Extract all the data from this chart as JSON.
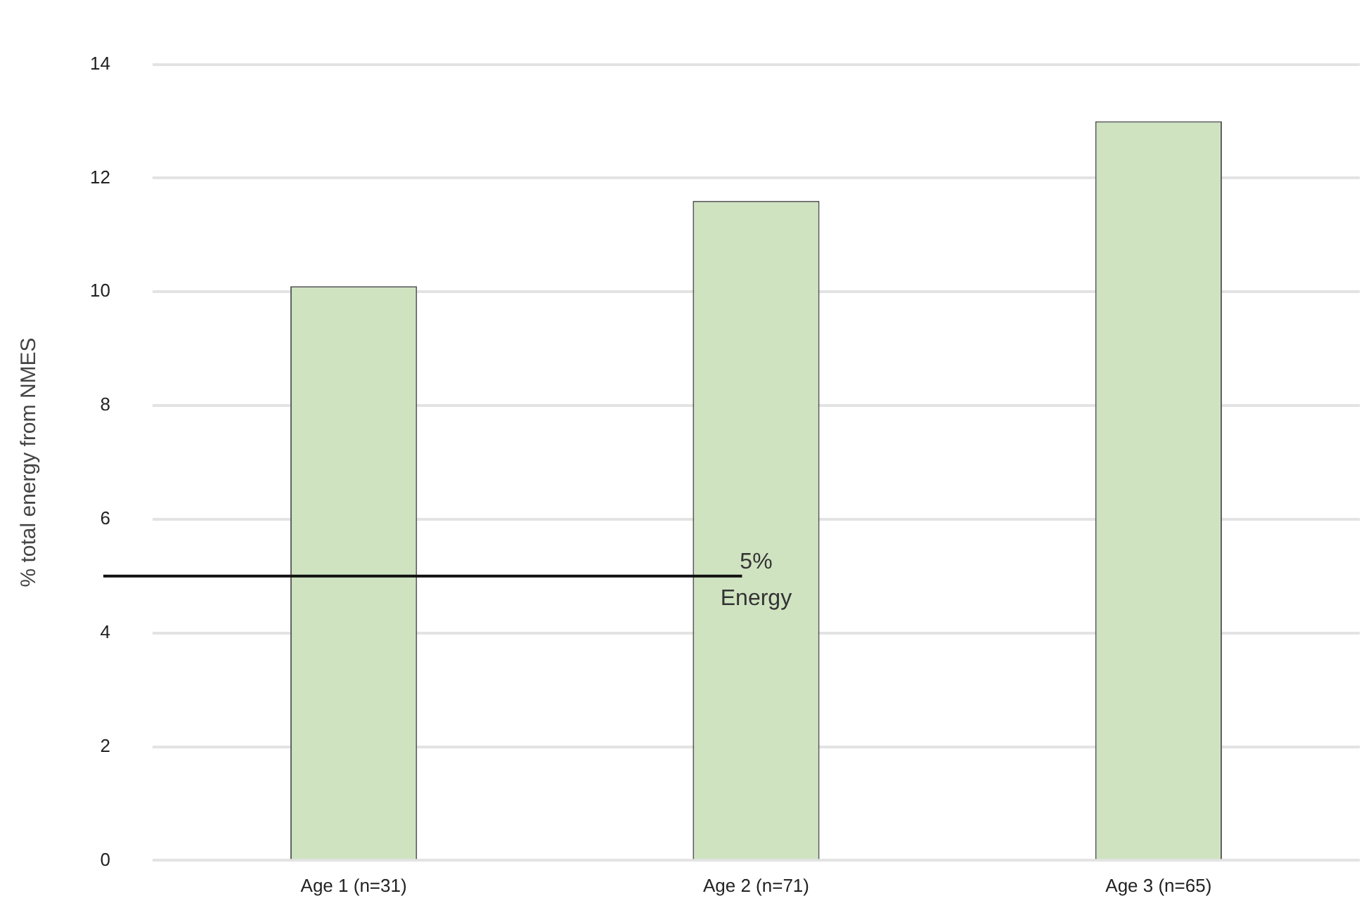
{
  "chart_data": {
    "type": "bar",
    "ylabel": "% total energy from NMES",
    "categories": [
      "Age 1 (n=31)",
      "Age 2 (n=71)",
      "Age 3 (n=65)"
    ],
    "series": [
      {
        "color": "#cfe3c1",
        "values": [
          10.1,
          11.6,
          13.0
        ]
      }
    ],
    "ylim": [
      0,
      14
    ],
    "yticks": [
      0,
      2,
      4,
      6,
      8,
      10,
      12,
      14
    ],
    "grid": "y",
    "legend": false,
    "ref_lines": [
      {
        "axis": "y",
        "value": 5,
        "label": "5% Energy",
        "color": "#111111"
      }
    ]
  }
}
